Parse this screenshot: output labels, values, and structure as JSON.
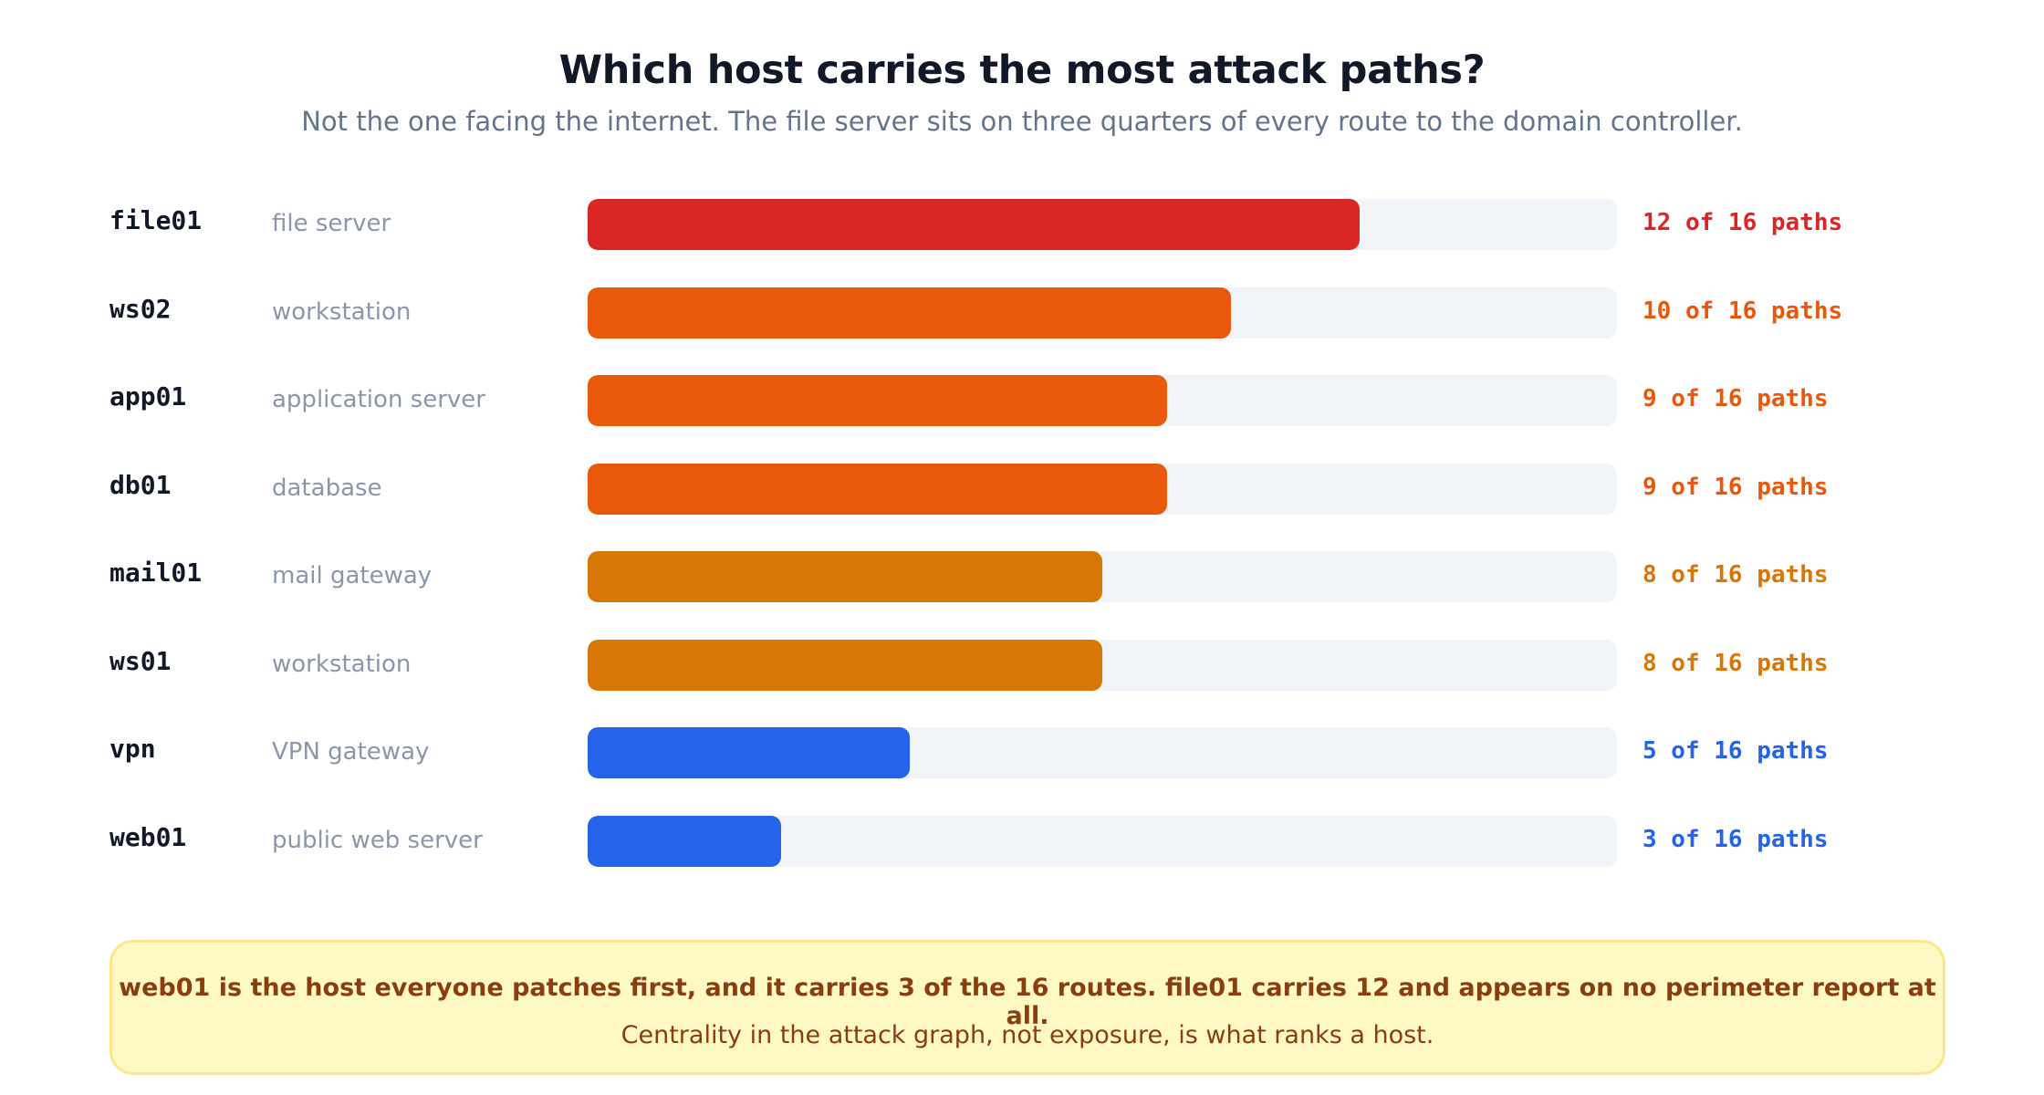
{
  "title": "Which host carries the most attack paths?",
  "subtitle": "Not the one facing the internet. The file server sits on three quarters of every route to the domain controller.",
  "chart_data": {
    "type": "bar",
    "orientation": "horizontal",
    "total_paths": 16,
    "bars": [
      {
        "host": "file01",
        "role": "file server",
        "value": 12,
        "label": "12 of 16 paths",
        "color": "#dc2626"
      },
      {
        "host": "ws02",
        "role": "workstation",
        "value": 10,
        "label": "10 of 16 paths",
        "color": "#ea580c"
      },
      {
        "host": "app01",
        "role": "application server",
        "value": 9,
        "label": "9 of 16 paths",
        "color": "#ea580c"
      },
      {
        "host": "db01",
        "role": "database",
        "value": 9,
        "label": "9 of 16 paths",
        "color": "#ea580c"
      },
      {
        "host": "mail01",
        "role": "mail gateway",
        "value": 8,
        "label": "8 of 16 paths",
        "color": "#d97706"
      },
      {
        "host": "ws01",
        "role": "workstation",
        "value": 8,
        "label": "8 of 16 paths",
        "color": "#d97706"
      },
      {
        "host": "vpn",
        "role": "VPN gateway",
        "value": 5,
        "label": "5 of 16 paths",
        "color": "#2563eb"
      },
      {
        "host": "web01",
        "role": "public web server",
        "value": 3,
        "label": "3 of 16 paths",
        "color": "#2563eb"
      }
    ],
    "xlim": [
      0,
      16
    ],
    "grid": false,
    "legend": "none"
  },
  "callout": {
    "main": "web01 is the host everyone patches first, and it carries 3 of the 16 routes. file01 carries 12 and appears on no perimeter report at all.",
    "sub": "Centrality in the attack graph, not exposure, is what ranks a host."
  },
  "colors": {
    "track": "#f1f4f8",
    "callout_bg": "#fef9c3",
    "callout_border": "#fde68a",
    "callout_text": "#8a3d0e"
  }
}
